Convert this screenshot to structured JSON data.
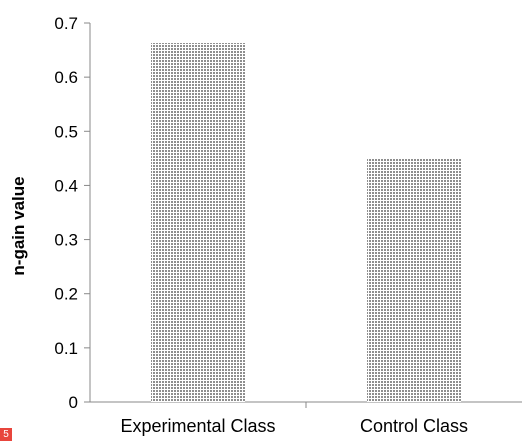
{
  "chart_data": {
    "type": "bar",
    "categories": [
      "Experimental Class",
      "Control Class"
    ],
    "values": [
      0.663,
      0.449
    ],
    "title": "",
    "xlabel": "",
    "ylabel": "n-gain value",
    "ylim": [
      0,
      0.7
    ],
    "yticks": [
      "0",
      "0.1",
      "0.2",
      "0.3",
      "0.4",
      "0.5",
      "0.6",
      "0.7"
    ],
    "grid": false,
    "legend": "none",
    "bar_fill": "#9a9a9a",
    "axis_color": "#888888"
  },
  "badge": {
    "text": "5",
    "color": "#e8453c"
  }
}
